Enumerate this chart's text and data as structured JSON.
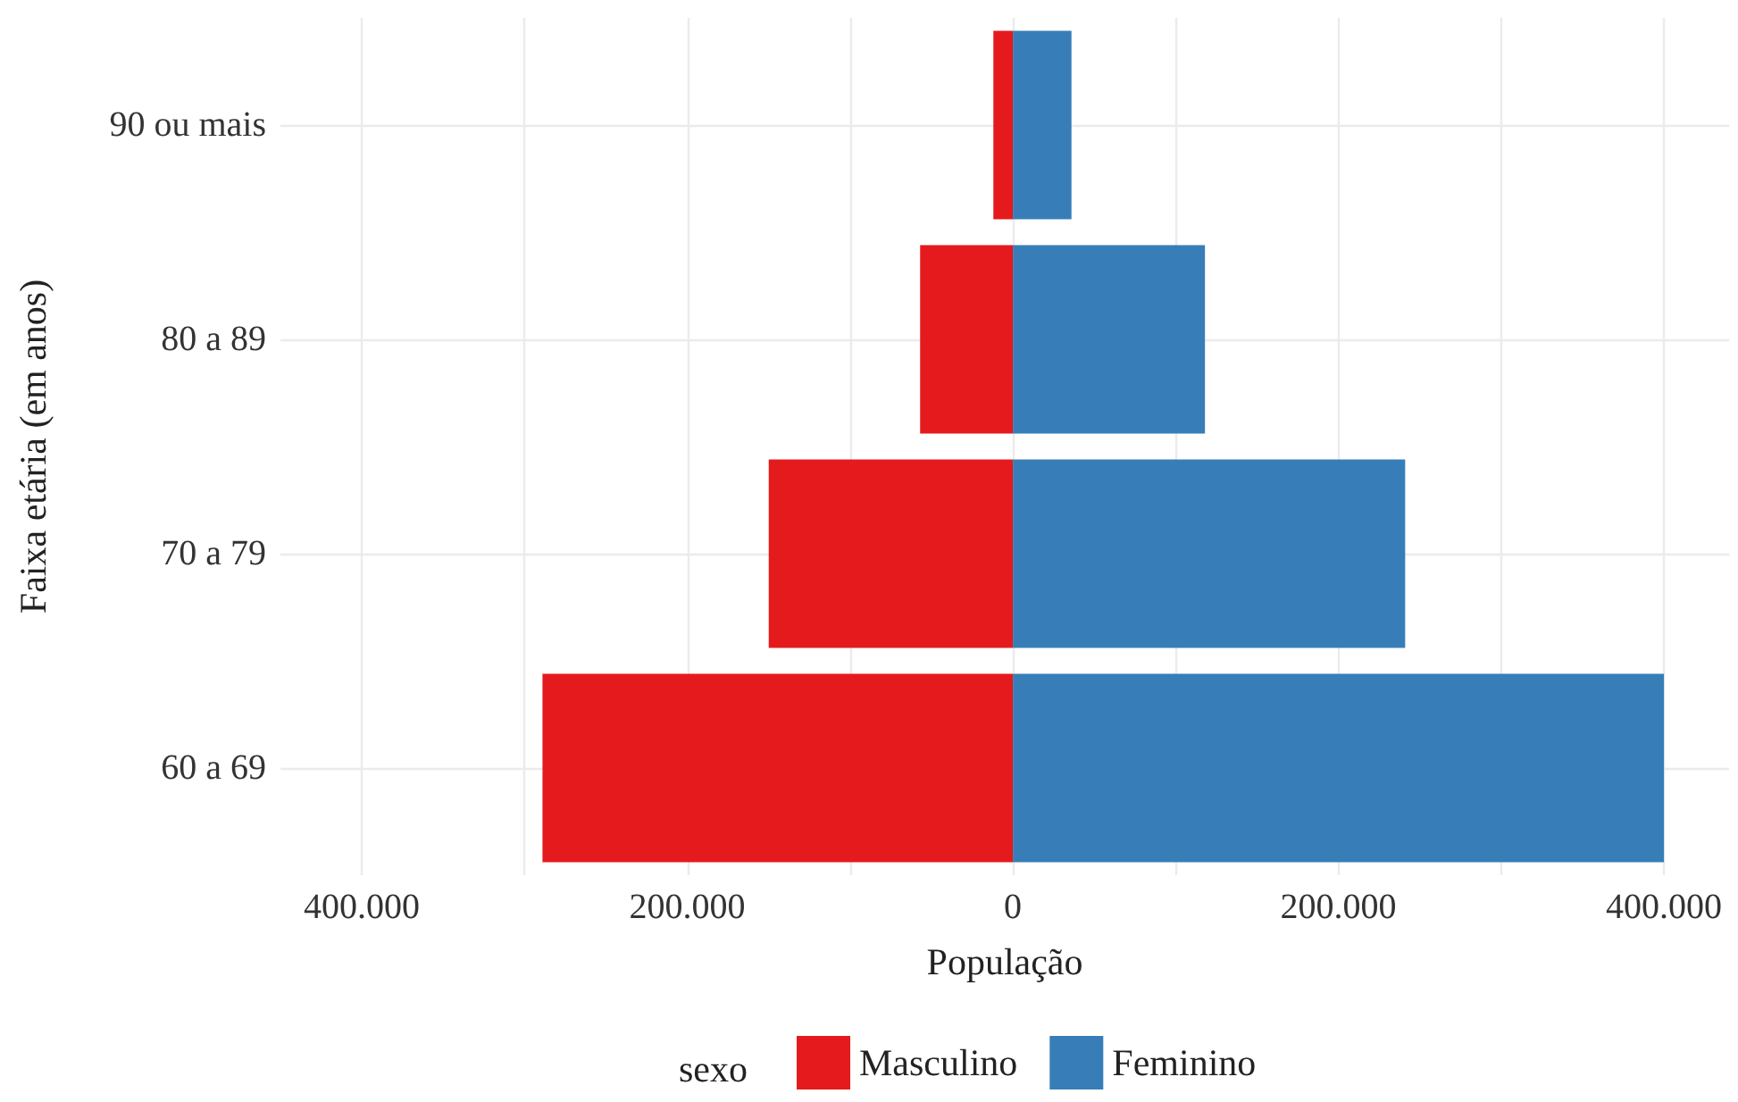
{
  "chart_data": {
    "type": "bar",
    "orientation": "horizontal",
    "stacked": true,
    "xlabel": "População",
    "ylabel": "Faixa etária (em anos)",
    "legend_title": "sexo",
    "categories": [
      "90 ou mais",
      "80 a 89",
      "70 a 79",
      "60 a 69"
    ],
    "series": [
      {
        "name": "Masculino",
        "color": "#e41a1c",
        "values": [
          -12000,
          -57000,
          -150000,
          -289000
        ]
      },
      {
        "name": "Feminino",
        "color": "#377eb8",
        "values": [
          36000,
          118000,
          241000,
          400000
        ]
      }
    ],
    "xlim": [
      -450000,
      440000
    ],
    "xticks": [
      {
        "value": -400000,
        "label": "400.000"
      },
      {
        "value": -300000,
        "label": null
      },
      {
        "value": -200000,
        "label": "200.000"
      },
      {
        "value": -100000,
        "label": null
      },
      {
        "value": 0,
        "label": "0"
      },
      {
        "value": 100000,
        "label": null
      },
      {
        "value": 200000,
        "label": "200.000"
      },
      {
        "value": 300000,
        "label": null
      },
      {
        "value": 400000,
        "label": "400.000"
      }
    ],
    "grid": true,
    "legend": "bottom"
  }
}
